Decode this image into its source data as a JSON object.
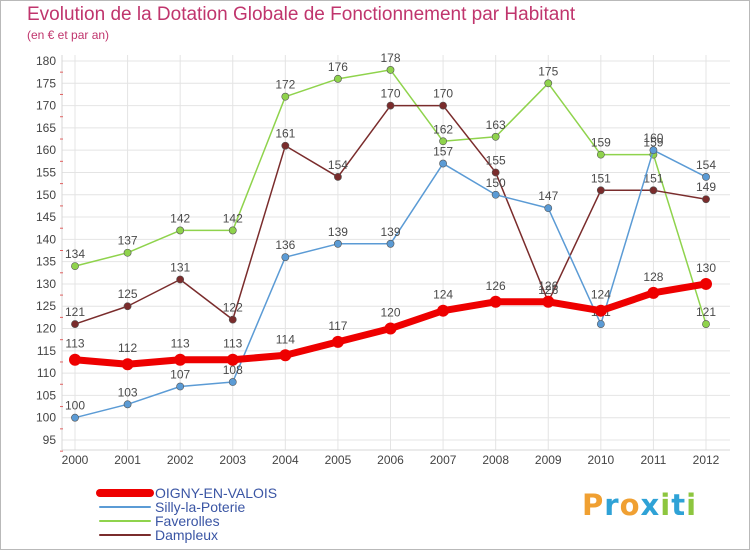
{
  "header": {
    "title": "Evolution de la Dotation Globale de Fonctionnement par Habitant",
    "subtitle": "(en € et par an)"
  },
  "chart_data": {
    "type": "line",
    "title": "Evolution de la Dotation Globale de Fonctionnement par Habitant",
    "subtitle": "(en € et par an)",
    "xlabel": "",
    "ylabel": "",
    "x": [
      "2000",
      "2001",
      "2002",
      "2003",
      "2004",
      "2005",
      "2006",
      "2007",
      "2008",
      "2009",
      "2010",
      "2011",
      "2012"
    ],
    "ylim": [
      95,
      180
    ],
    "yticks": [
      95,
      100,
      105,
      110,
      115,
      120,
      125,
      130,
      135,
      140,
      145,
      150,
      155,
      160,
      165,
      170,
      175,
      180
    ],
    "grid": true,
    "legend_position": "bottom-left",
    "series": [
      {
        "name": "Faverolles",
        "color": "#8fd34c",
        "values": [
          134,
          137,
          142,
          142,
          172,
          176,
          178,
          162,
          163,
          175,
          159,
          159,
          121
        ]
      },
      {
        "name": "Dampleux",
        "color": "#7a2c2c",
        "values": [
          121,
          125,
          131,
          122,
          161,
          154,
          170,
          170,
          155,
          126,
          151,
          151,
          149
        ]
      },
      {
        "name": "Silly-la-Poterie",
        "color": "#5b9bd5",
        "values": [
          100,
          103,
          107,
          108,
          136,
          139,
          139,
          157,
          150,
          147,
          121,
          160,
          154
        ]
      },
      {
        "name": "OIGNY-EN-VALOIS",
        "color": "#ee0000",
        "values": [
          113,
          112,
          113,
          113,
          114,
          117,
          120,
          124,
          126,
          126,
          124,
          128,
          130
        ]
      }
    ],
    "legend": [
      {
        "name": "OIGNY-EN-VALOIS",
        "color": "#ee0000"
      },
      {
        "name": "Silly-la-Poterie",
        "color": "#5b9bd5"
      },
      {
        "name": "Faverolles",
        "color": "#8fd34c"
      },
      {
        "name": "Dampleux",
        "color": "#7a2c2c"
      }
    ]
  },
  "logo": {
    "text": "Proxiti",
    "letters": [
      "P",
      "r",
      "o",
      "x",
      "i",
      "t",
      "i"
    ],
    "colors": [
      "#f0a032",
      "#2fa2d6",
      "#f0a032",
      "#2fa2d6",
      "#8dc63f",
      "#2fa2d6",
      "#8dc63f"
    ]
  }
}
